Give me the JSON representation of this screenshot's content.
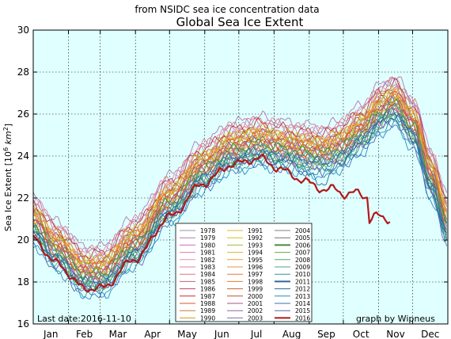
{
  "chart_data": {
    "type": "line",
    "suptitle": "from NSIDC sea ice concentration data",
    "title": "Global Sea Ice Extent",
    "ylabel_main": "Sea Ice Extent [10",
    "ylabel_exp": "6",
    "ylabel_unit": " km",
    "ylabel_unit_exp": "2",
    "ylabel_close": "]",
    "ylim": [
      16,
      30
    ],
    "yticks": [
      "16",
      "18",
      "20",
      "22",
      "24",
      "26",
      "28",
      "30"
    ],
    "months": [
      "Jan",
      "Feb",
      "Mar",
      "Apr",
      "May",
      "Jun",
      "Jul",
      "Aug",
      "Sep",
      "Oct",
      "Nov",
      "Dec"
    ],
    "last_date_text": "Last date:2016-11-10",
    "credit_text": "graph by Wipneus",
    "grid": true,
    "legend_position": "lower-center",
    "series": [
      {
        "name": "1978",
        "color": "#9a8fa8"
      },
      {
        "name": "1979",
        "color": "#b07ab0"
      },
      {
        "name": "1980",
        "color": "#c86ec0"
      },
      {
        "name": "1981",
        "color": "#e07aa8"
      },
      {
        "name": "1982",
        "color": "#e490a8"
      },
      {
        "name": "1983",
        "color": "#e4809a"
      },
      {
        "name": "1984",
        "color": "#d87880"
      },
      {
        "name": "1985",
        "color": "#c86070"
      },
      {
        "name": "1986",
        "color": "#b04860"
      },
      {
        "name": "1987",
        "color": "#c03040"
      },
      {
        "name": "1988",
        "color": "#d0582c"
      },
      {
        "name": "1989",
        "color": "#d4782c"
      },
      {
        "name": "1990",
        "color": "#d49818"
      },
      {
        "name": "1991",
        "color": "#e0b428"
      },
      {
        "name": "1992",
        "color": "#d0c020"
      },
      {
        "name": "1993",
        "color": "#a8b828"
      },
      {
        "name": "1994",
        "color": "#e8b020"
      },
      {
        "name": "1995",
        "color": "#f0a030"
      },
      {
        "name": "1996",
        "color": "#e89838"
      },
      {
        "name": "1997",
        "color": "#e07838"
      },
      {
        "name": "1998",
        "color": "#f07820"
      },
      {
        "name": "1999",
        "color": "#d06028"
      },
      {
        "name": "2000",
        "color": "#c0502c"
      },
      {
        "name": "2001",
        "color": "#a85088"
      },
      {
        "name": "2002",
        "color": "#9860a8"
      },
      {
        "name": "2003",
        "color": "#8070a0"
      },
      {
        "name": "2004",
        "color": "#808088"
      },
      {
        "name": "2005",
        "color": "#707070"
      },
      {
        "name": "2006",
        "color": "#4a8a3a"
      },
      {
        "name": "2007",
        "color": "#6aaa4a"
      },
      {
        "name": "2008",
        "color": "#4ab060"
      },
      {
        "name": "2009",
        "color": "#40a890"
      },
      {
        "name": "2010",
        "color": "#3090a8"
      },
      {
        "name": "2011",
        "color": "#2a6aa0"
      },
      {
        "name": "2012",
        "color": "#1a6e98"
      },
      {
        "name": "2013",
        "color": "#2a88c8"
      },
      {
        "name": "2014",
        "color": "#3070b8"
      },
      {
        "name": "2015",
        "color": "#5868b0"
      },
      {
        "name": "2016",
        "color": "#b01818"
      }
    ]
  }
}
